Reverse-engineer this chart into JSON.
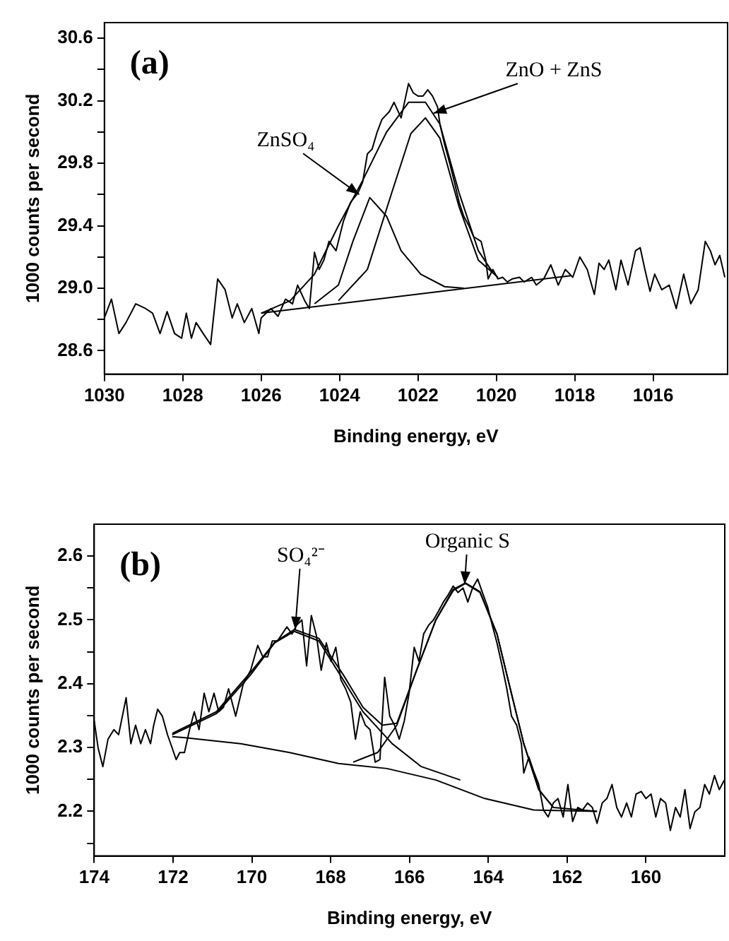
{
  "chart_data": [
    {
      "type": "line",
      "xlabel": "Binding energy, eV",
      "ylabel": "1000 counts per second",
      "marker": "none",
      "xlim": [
        1030,
        1014.1
      ],
      "ylim": [
        28.45,
        30.7
      ],
      "xticks": [
        1030,
        1028,
        1026,
        1024,
        1022,
        1020,
        1018,
        1016
      ],
      "yticks": [
        {
          "value": 28.6,
          "label": "28.6"
        },
        {
          "value": 28.8,
          "label": null
        },
        {
          "value": 29,
          "label": "29.0"
        },
        {
          "value": 29.2,
          "label": null
        },
        {
          "value": 29.4,
          "label": "29.4"
        },
        {
          "value": 29.6,
          "label": null
        },
        {
          "value": 29.8,
          "label": "29.8"
        },
        {
          "value": 30,
          "label": null
        },
        {
          "value": 30.2,
          "label": "30.2"
        },
        {
          "value": 30.4,
          "label": null
        },
        {
          "value": 30.6,
          "label": "30.6"
        }
      ],
      "series": [
        {
          "color": "#000000",
          "x": [
            1030,
            1029.82,
            1029.63,
            1029.45,
            1029.2,
            1028.95,
            1028.77,
            1028.58,
            1028.4,
            1028.21,
            1028.03,
            1027.91,
            1027.78,
            1027.66,
            1027.48,
            1027.29,
            1027.11,
            1026.92,
            1026.74,
            1026.61,
            1026.43,
            1026.24,
            1026.06,
            1026,
            1025.75,
            1025.57,
            1025.38,
            1025.2,
            1025.07,
            1024.89,
            1024.77,
            1024.64,
            1024.52,
            1024.4,
            1024.27,
            1024.09,
            1023.9,
            1023.72,
            1023.53,
            1023.41,
            1023.29,
            1023.17,
            1023.04,
            1022.92,
            1022.73,
            1022.61,
            1022.43,
            1022.24,
            1022.12,
            1022,
            1021.87,
            1021.75,
            1021.63,
            1021.5,
            1021.44,
            1021.32,
            1021.19,
            1021.07,
            1020.95,
            1020.83,
            1020.7,
            1020.58,
            1020.39,
            1020.27,
            1020.21,
            1020.09,
            1019.96,
            1019.84,
            1019.72,
            1019.59,
            1019.41,
            1019.29,
            1019.1,
            1018.98,
            1018.79,
            1018.61,
            1018.42,
            1018.24,
            1018.05,
            1017.87,
            1017.68,
            1017.5,
            1017.38,
            1017.25,
            1017.13,
            1016.95,
            1016.82,
            1016.64,
            1016.45,
            1016.33,
            1016.21,
            1016.08,
            1015.96,
            1015.78,
            1015.59,
            1015.41,
            1015.22,
            1015.04,
            1014.85,
            1014.67,
            1014.54,
            1014.42,
            1014.3,
            1014.17
          ],
          "values": [
            28.81,
            28.93,
            28.71,
            28.78,
            28.9,
            28.87,
            28.84,
            28.71,
            28.85,
            28.71,
            28.68,
            28.84,
            28.68,
            28.78,
            28.71,
            28.64,
            29.06,
            28.99,
            28.81,
            28.9,
            28.78,
            28.87,
            28.71,
            28.81,
            28.87,
            28.82,
            28.93,
            28.9,
            29.02,
            28.92,
            28.87,
            29.23,
            29.12,
            29.18,
            29.3,
            29.24,
            29.43,
            29.55,
            29.61,
            29.68,
            29.86,
            29.89,
            30,
            30.08,
            30.13,
            30.19,
            30.09,
            30.31,
            30.25,
            30.23,
            30.23,
            30.27,
            30.23,
            30.16,
            30.05,
            29.92,
            29.8,
            29.68,
            29.55,
            29.46,
            29.4,
            29.33,
            29.3,
            29.18,
            29.06,
            29.12,
            29.06,
            29.07,
            29.04,
            29.06,
            29.07,
            29.04,
            29.07,
            29.02,
            29.06,
            29.15,
            29.02,
            29.12,
            29.07,
            29.2,
            29.12,
            28.96,
            29.16,
            29.12,
            29.18,
            28.99,
            29.18,
            29.02,
            29.24,
            29.26,
            29.12,
            28.98,
            29.09,
            28.99,
            29.02,
            28.87,
            29.09,
            28.9,
            28.99,
            29.3,
            29.24,
            29.15,
            29.21,
            29.07
          ]
        },
        {
          "color": "#000000",
          "x": [
            1026,
            1018.1
          ],
          "values": [
            28.84,
            29.08
          ]
        },
        {
          "color": "#000000",
          "x": [
            1024.64,
            1024.03,
            1023.66,
            1023.23,
            1022.8,
            1022.43,
            1021.93,
            1021.32,
            1020.83
          ],
          "values": [
            28.9,
            29.02,
            29.3,
            29.58,
            29.46,
            29.24,
            29.09,
            29.01,
            29
          ]
        },
        {
          "color": "#000000",
          "x": [
            1024.03,
            1023.29,
            1022.67,
            1022.18,
            1021.81,
            1021.44,
            1020.95,
            1020.46,
            1019.96
          ],
          "values": [
            28.92,
            29.12,
            29.61,
            29.99,
            30.09,
            29.96,
            29.52,
            29.18,
            29.07
          ]
        },
        {
          "color": "#000000",
          "x": [
            1026,
            1025.26,
            1024.64,
            1024.03,
            1023.41,
            1022.8,
            1022.24,
            1021.81,
            1021.44,
            1020.95,
            1020.46,
            1020.09
          ],
          "values": [
            28.84,
            28.92,
            29.09,
            29.4,
            29.69,
            30,
            30.19,
            30.19,
            30.05,
            29.61,
            29.24,
            29.1
          ]
        }
      ],
      "annotations": [
        "(a)",
        {
          "text": "ZnSO₄",
          "x": 1023.5,
          "y": 29.6
        },
        {
          "text": "ZnO + ZnS",
          "x": 1021.6,
          "y": 30.12
        }
      ]
    },
    {
      "type": "line",
      "xlabel": "Binding energy, eV",
      "ylabel": "1000 counts per second",
      "marker": "none",
      "xlim": [
        174,
        158
      ],
      "ylim": [
        2.13,
        2.65
      ],
      "xticks": [
        174,
        172,
        170,
        168,
        166,
        164,
        162,
        160
      ],
      "yticks": [
        {
          "value": 2.15,
          "label": null
        },
        2.2,
        {
          "value": 2.25,
          "label": null
        },
        2.3,
        {
          "value": 2.35,
          "label": null
        },
        2.4,
        {
          "value": 2.45,
          "label": null
        },
        2.5,
        {
          "value": 2.55,
          "label": null
        },
        2.6
      ],
      "series": [
        {
          "color": "#000000",
          "x": [
            174,
            173.9,
            173.78,
            173.65,
            173.5,
            173.38,
            173.19,
            173.07,
            172.95,
            172.82,
            172.7,
            172.57,
            172.49,
            172.39,
            172.27,
            172.14,
            172.02,
            171.92,
            171.83,
            171.71,
            171.58,
            171.46,
            171.34,
            171.21,
            171.09,
            170.96,
            170.84,
            170.72,
            170.59,
            170.41,
            170.22,
            170.03,
            169.85,
            169.72,
            169.6,
            169.48,
            169.35,
            169.23,
            169.11,
            168.98,
            168.86,
            168.73,
            168.61,
            168.49,
            168.36,
            168.24,
            168.11,
            167.99,
            167.87,
            167.74,
            167.62,
            167.49,
            167.37,
            167.25,
            167.12,
            167,
            166.87,
            166.75,
            166.63,
            166.5,
            166.38,
            166.26,
            166.13,
            166.01,
            165.88,
            165.76,
            165.64,
            165.51,
            165.39,
            165.26,
            165.14,
            165.02,
            164.89,
            164.77,
            164.64,
            164.52,
            164.4,
            164.27,
            164.15,
            164.02,
            163.9,
            163.78,
            163.65,
            163.53,
            163.41,
            163.28,
            163.16,
            163.1,
            162.97,
            162.85,
            162.72,
            162.6,
            162.48,
            162.35,
            162.23,
            162.1,
            161.98,
            161.86,
            161.73,
            161.61,
            161.48,
            161.36,
            161.24,
            161.11,
            160.99,
            160.86,
            160.74,
            160.62,
            160.49,
            160.37,
            160.25,
            160.12,
            160,
            159.87,
            159.75,
            159.63,
            159.5,
            159.38,
            159.25,
            159.13,
            159.01,
            158.88,
            158.76,
            158.63,
            158.51,
            158.39,
            158.26,
            158.14,
            158.01
          ],
          "values": [
            2.342,
            2.299,
            2.27,
            2.313,
            2.328,
            2.32,
            2.378,
            2.306,
            2.335,
            2.306,
            2.328,
            2.306,
            2.335,
            2.36,
            2.349,
            2.32,
            2.299,
            2.281,
            2.292,
            2.292,
            2.328,
            2.356,
            2.328,
            2.385,
            2.356,
            2.385,
            2.356,
            2.363,
            2.392,
            2.349,
            2.399,
            2.421,
            2.46,
            2.442,
            2.442,
            2.467,
            2.467,
            2.478,
            2.489,
            2.478,
            2.492,
            2.5,
            2.428,
            2.507,
            2.475,
            2.421,
            2.464,
            2.435,
            2.457,
            2.406,
            2.392,
            2.371,
            2.313,
            2.356,
            2.335,
            2.328,
            2.277,
            2.281,
            2.41,
            2.349,
            2.335,
            2.313,
            2.342,
            2.385,
            2.457,
            2.435,
            2.478,
            2.492,
            2.5,
            2.514,
            2.528,
            2.539,
            2.553,
            2.543,
            2.55,
            2.528,
            2.55,
            2.564,
            2.543,
            2.521,
            2.492,
            2.464,
            2.428,
            2.392,
            2.349,
            2.335,
            2.306,
            2.26,
            2.285,
            2.263,
            2.242,
            2.202,
            2.191,
            2.213,
            2.22,
            2.191,
            2.242,
            2.184,
            2.206,
            2.202,
            2.213,
            2.206,
            2.181,
            2.213,
            2.22,
            2.242,
            2.206,
            2.191,
            2.213,
            2.191,
            2.227,
            2.231,
            2.22,
            2.227,
            2.191,
            2.22,
            2.213,
            2.17,
            2.206,
            2.191,
            2.234,
            2.173,
            2.199,
            2.206,
            2.242,
            2.227,
            2.256,
            2.234,
            2.249
          ]
        },
        {
          "color": "#000000",
          "x": [
            172.02,
            171.65,
            170.28,
            169.04,
            167.8,
            166.57,
            165.33,
            164.09,
            162.85,
            161.24
          ],
          "values": [
            2.317,
            2.315,
            2.306,
            2.292,
            2.275,
            2.267,
            2.249,
            2.22,
            2.202,
            2.2
          ]
        },
        {
          "color": "#000000",
          "x": [
            172.02,
            170.9,
            170.03,
            169.42,
            168.92,
            168.3,
            167.68,
            167.18,
            166.44,
            165.7,
            164.71
          ],
          "values": [
            2.32,
            2.353,
            2.414,
            2.464,
            2.482,
            2.467,
            2.406,
            2.356,
            2.306,
            2.27,
            2.249
          ]
        },
        {
          "color": "#000000",
          "x": [
            167.43,
            166.81,
            166.32,
            165.82,
            165.33,
            164.89,
            164.58,
            164.21,
            163.78,
            163.47,
            163.1,
            162.72,
            162.35
          ],
          "values": [
            2.277,
            2.292,
            2.335,
            2.421,
            2.5,
            2.546,
            2.557,
            2.543,
            2.478,
            2.399,
            2.306,
            2.234,
            2.206
          ]
        },
        {
          "color": "#000000",
          "x": [
            172.02,
            170.9,
            170.03,
            169.42,
            168.92,
            168.3,
            167.68,
            167.18,
            166.69,
            166.32,
            165.82,
            165.33,
            164.89,
            164.58,
            164.21,
            163.78,
            163.47,
            163.1,
            162.72,
            162.35,
            161.24
          ],
          "values": [
            2.322,
            2.356,
            2.418,
            2.465,
            2.485,
            2.471,
            2.414,
            2.363,
            2.335,
            2.338,
            2.421,
            2.5,
            2.548,
            2.558,
            2.544,
            2.478,
            2.399,
            2.306,
            2.234,
            2.206,
            2.2
          ]
        }
      ],
      "annotations": [
        "(b)",
        {
          "text": "SO₄²⁻",
          "x": 168.9,
          "y": 2.485
        },
        {
          "text": "Organic S",
          "x": 164.6,
          "y": 2.556
        }
      ]
    }
  ]
}
